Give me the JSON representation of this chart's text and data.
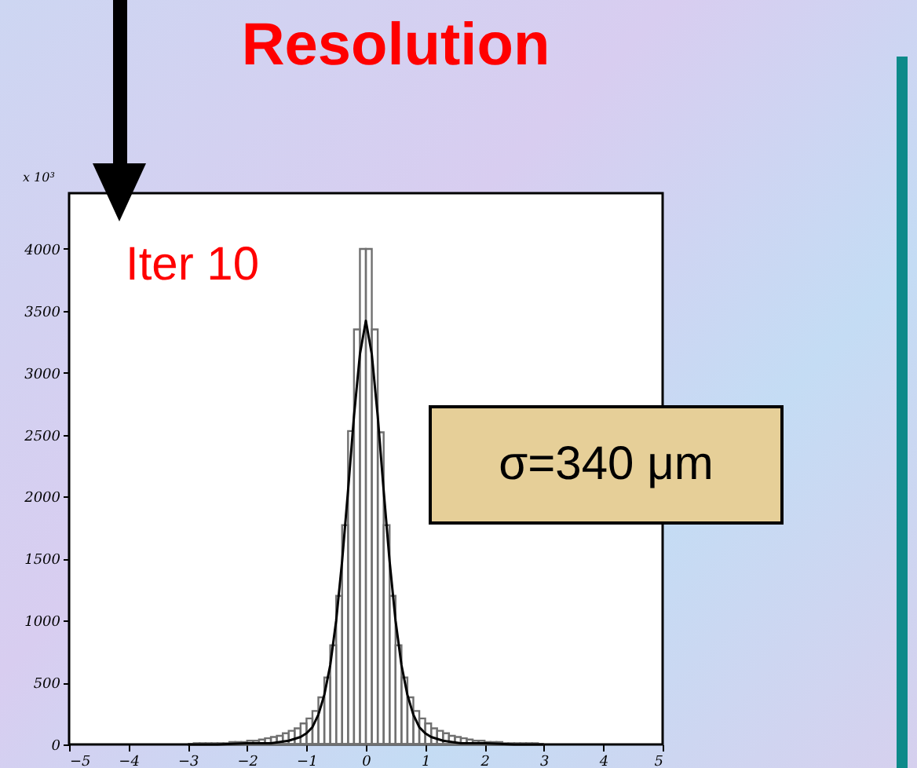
{
  "chart_data": {
    "type": "histogram",
    "title": "Resolution",
    "ylabel": "x 10³",
    "annotations": [
      "Iter 10",
      "σ=340 μm"
    ],
    "xlim": [
      -5,
      5
    ],
    "xticks": [
      -5,
      -4,
      -3,
      -2,
      -1,
      0,
      1,
      2,
      3,
      4,
      5
    ],
    "ylim": [
      0,
      4450
    ],
    "yticks": [
      0,
      500,
      1000,
      1500,
      2000,
      2500,
      3000,
      3500,
      4000
    ],
    "grid": false,
    "series": [
      {
        "color": "#707070",
        "bins": [
          -3,
          -2.9,
          -2.8,
          -2.7,
          -2.6,
          -2.5,
          -2.4,
          -2.3,
          -2.2,
          -2.1,
          -2,
          -1.9,
          -1.8,
          -1.7,
          -1.6,
          -1.5,
          -1.4,
          -1.3,
          -1.2,
          -1.1,
          -1,
          -0.9,
          -0.8,
          -0.7,
          -0.6,
          -0.5,
          -0.4,
          -0.3,
          -0.2,
          -0.1,
          0,
          0.1,
          0.2,
          0.3,
          0.4,
          0.5,
          0.6,
          0.7,
          0.8,
          0.9,
          1,
          1.1,
          1.2,
          1.3,
          1.4,
          1.5,
          1.6,
          1.7,
          1.8,
          1.9,
          2,
          2.1,
          2.2,
          2.3,
          2.4,
          2.5,
          2.6,
          2.7,
          2.8,
          2.9,
          3
        ],
        "values": [
          0,
          10,
          10,
          10,
          10,
          10,
          10,
          20,
          20,
          20,
          30,
          30,
          40,
          50,
          60,
          70,
          90,
          110,
          130,
          170,
          210,
          270,
          380,
          540,
          800,
          1200,
          1770,
          2530,
          3350,
          4000,
          4000,
          3350,
          2520,
          1770,
          1200,
          800,
          540,
          380,
          270,
          210,
          170,
          130,
          110,
          90,
          70,
          60,
          50,
          40,
          30,
          30,
          20,
          20,
          20,
          10,
          10,
          10,
          10,
          10,
          10,
          0
        ]
      },
      {
        "type": "line",
        "color": "#000000",
        "x": [
          -3,
          -2.5,
          -2,
          -1.6,
          -1.3,
          -1.1,
          -1,
          -0.9,
          -0.8,
          -0.7,
          -0.6,
          -0.5,
          -0.4,
          -0.3,
          -0.2,
          -0.1,
          0,
          0.1,
          0.2,
          0.3,
          0.4,
          0.5,
          0.6,
          0.7,
          0.8,
          0.9,
          1,
          1.1,
          1.3,
          1.6,
          2,
          2.5,
          3
        ],
        "values": [
          0,
          0,
          10,
          10,
          30,
          60,
          90,
          140,
          240,
          400,
          640,
          1000,
          1480,
          2050,
          2650,
          3150,
          3420,
          3150,
          2650,
          2050,
          1480,
          1000,
          640,
          400,
          240,
          140,
          90,
          60,
          30,
          10,
          10,
          0,
          0
        ]
      }
    ]
  }
}
